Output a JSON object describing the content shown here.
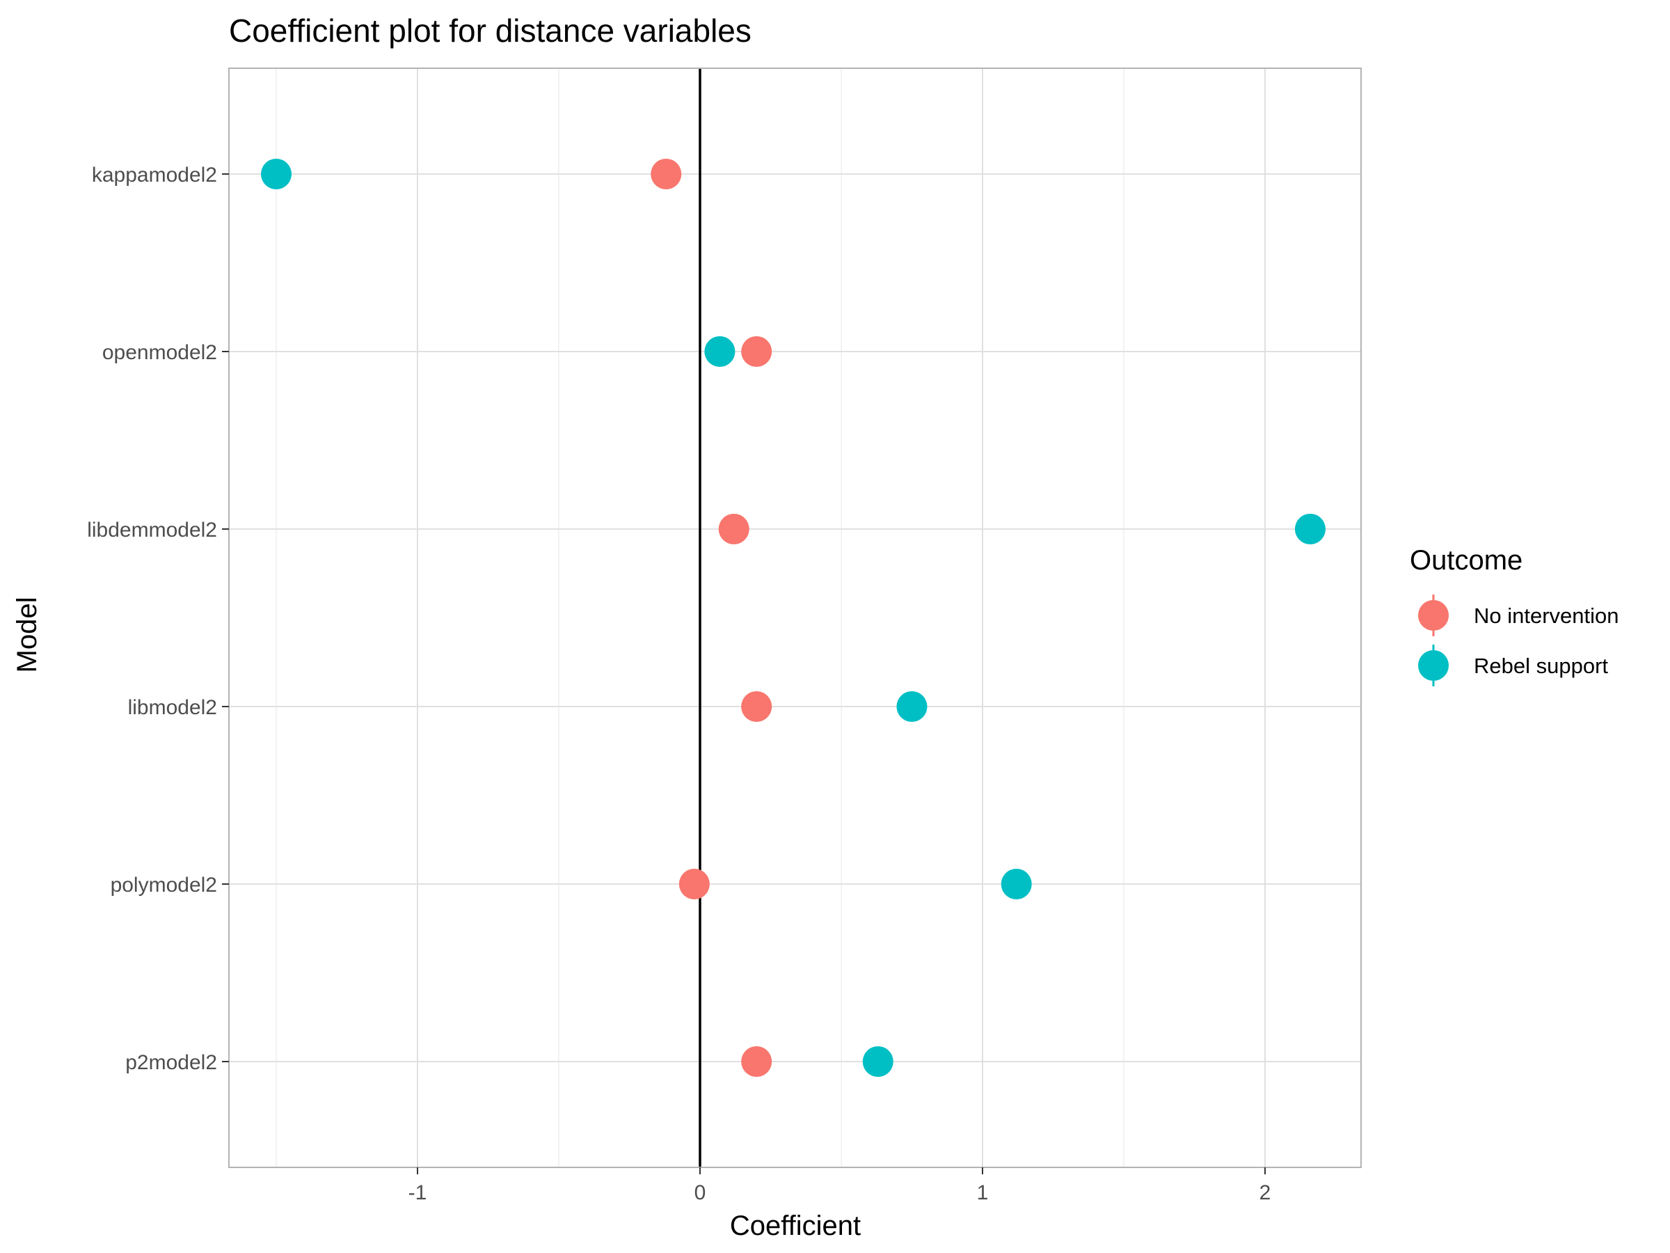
{
  "chart_data": {
    "type": "scatter",
    "title": "Coefficient plot for distance variables",
    "xlabel": "Coefficient",
    "ylabel": "Model",
    "xlim": [
      -1.68,
      2.34
    ],
    "x_ticks": [
      -1,
      0,
      1,
      2
    ],
    "x_tick_labels": [
      "-1",
      "0",
      "1",
      "2"
    ],
    "categories": [
      "kappamodel2",
      "openmodel2",
      "libdemmodel2",
      "libmodel2",
      "polymodel2",
      "p2model2"
    ],
    "grid": true,
    "reference_line_x": 0,
    "legend": {
      "title": "Outcome",
      "position": "right"
    },
    "series": [
      {
        "name": "No intervention",
        "color": "#F8766D",
        "values": [
          -0.12,
          0.2,
          0.12,
          0.2,
          -0.02,
          0.2
        ]
      },
      {
        "name": "Rebel support",
        "color": "#00BFC4",
        "values": [
          -1.5,
          0.07,
          2.16,
          0.75,
          1.12,
          0.63
        ]
      }
    ]
  }
}
